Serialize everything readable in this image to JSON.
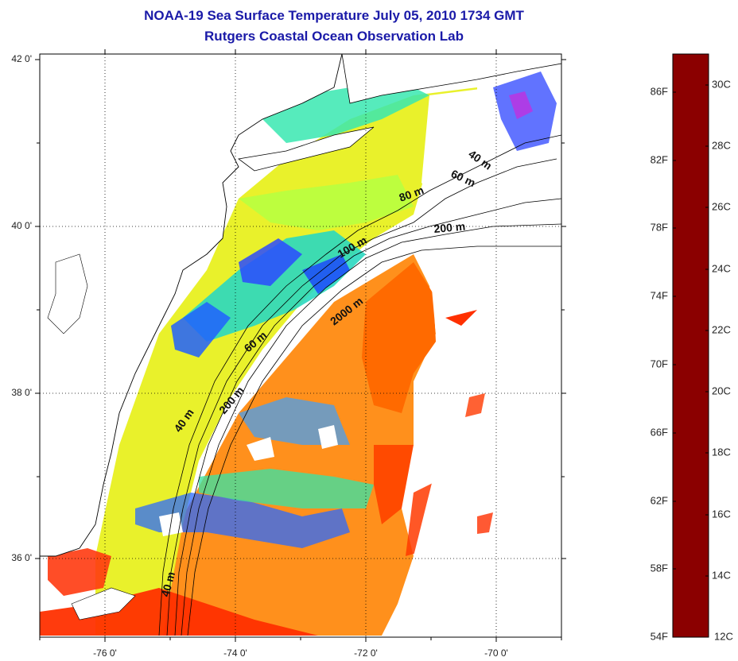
{
  "title": "NOAA-19 Sea Surface Temperature July 05, 2010 1734 GMT",
  "subtitle": "Rutgers Coastal Ocean Observation Lab",
  "axes": {
    "lat_labels": [
      "42 0'",
      "40 0'",
      "38 0'",
      "36 0'"
    ],
    "lon_labels": [
      "-76 0'",
      "-74 0'",
      "-72 0'",
      "-70 0'"
    ]
  },
  "contours": {
    "labels": [
      "40 m",
      "60 m",
      "80 m",
      "200 m",
      "100 m",
      "2000 m",
      "60 m",
      "200 m",
      "40 m",
      "40 m"
    ]
  },
  "colorbar": {
    "f_labels": [
      "86F",
      "82F",
      "78F",
      "74F",
      "70F",
      "66F",
      "62F",
      "58F",
      "54F"
    ],
    "c_labels": [
      "30C",
      "28C",
      "26C",
      "24C",
      "22C",
      "20C",
      "18C",
      "16C",
      "14C",
      "12C"
    ],
    "colors": [
      "#8b0000",
      "#d40000",
      "#ff3300",
      "#ff7a00",
      "#ffb000",
      "#ffe000",
      "#c8ff1a",
      "#66ff66",
      "#18ffd8",
      "#00c8ff",
      "#0080ff",
      "#0030ff",
      "#1a00d0",
      "#7a20d0",
      "#c030e0",
      "#ff30e8"
    ]
  },
  "colors": {
    "title": "#1a1aa8",
    "land": "#ffffff"
  }
}
